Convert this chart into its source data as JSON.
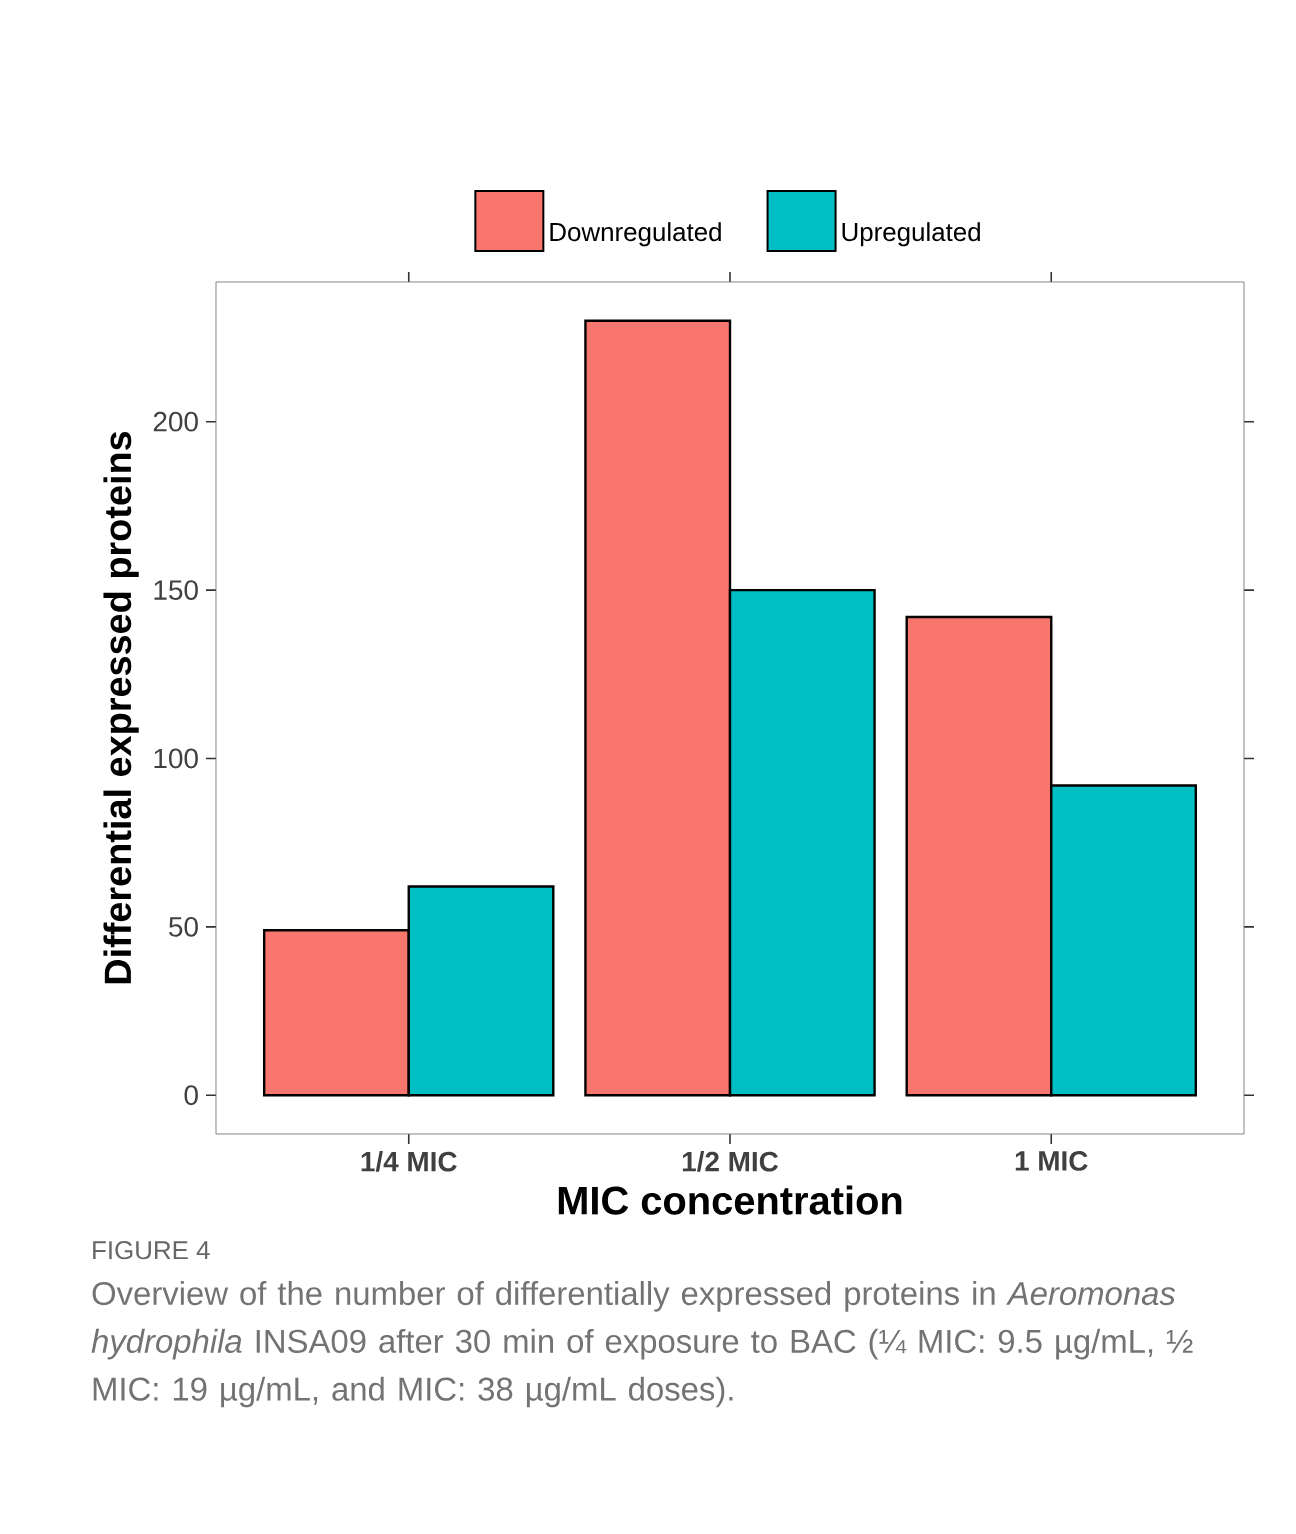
{
  "chart_data": {
    "type": "bar",
    "xlabel": "MIC concentration",
    "ylabel": "Differential expressed proteins",
    "categories": [
      "1/4 MIC",
      "1/2 MIC",
      "1 MIC"
    ],
    "series": [
      {
        "name": "Downregulated",
        "color": "#f8766d",
        "values": [
          49,
          230,
          142
        ]
      },
      {
        "name": "Upregulated",
        "color": "#00bfc4",
        "values": [
          62,
          150,
          92
        ]
      }
    ],
    "ylim": [
      -11.5,
      241.5
    ],
    "yticks": [
      0,
      50,
      100,
      150,
      200
    ],
    "grid": false,
    "legend": "top",
    "annotations": [
      "FIGURE 4",
      "Overview of the number of differentially expressed proteins in *Aeromonas hydrophila* INSA09 after 30 min of exposure to BAC (¼ MIC: 9.5 µg/mL, ½ MIC: 19 µg/mL, and MIC: 38 µg/mL doses)."
    ]
  }
}
